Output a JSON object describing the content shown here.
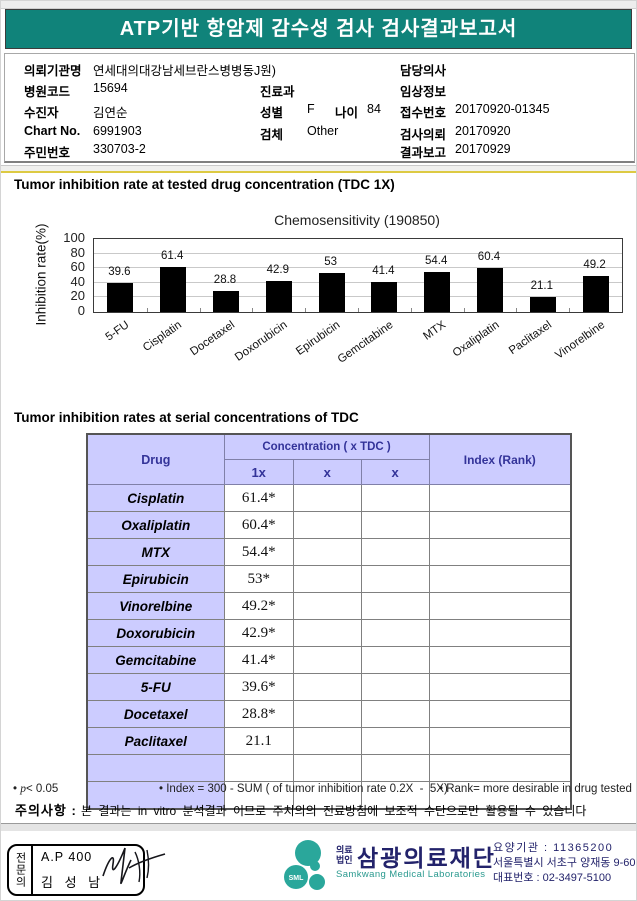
{
  "title": "ATP기반 항암제 감수성 검사 검사결과보고서",
  "colors": {
    "header_teal": "#10837a",
    "table_lavender": "#ccccff",
    "table_navy_text": "#333399",
    "bar_color": "#000000",
    "yellow_rule": "#ddca43",
    "logo_teal": "#2aa79b",
    "logo_navy": "#23236b"
  },
  "patient_info": {
    "requesting_org_label": "의뢰기관명",
    "requesting_org": "연세대의대강남세브란스병병동J원)",
    "hospital_code_label": "병원코드",
    "hospital_code": "15694",
    "patient_label": "수진자",
    "patient_name": "김연순",
    "chart_no_label": "Chart No.",
    "chart_no": "6991903",
    "resident_no_label": "주민번호",
    "resident_no": "330703-2",
    "department_label": "진료과",
    "department": "",
    "sex_label": "성별",
    "sex": "F",
    "age_label": "나이",
    "age": "84",
    "specimen_label": "검체",
    "specimen": "Other",
    "doctor_label": "담당의사",
    "doctor": "",
    "clinical_info_label": "임상정보",
    "clinical_info": "",
    "receipt_no_label": "접수번호",
    "receipt_no": "20170920-01345",
    "test_request_label": "검사의뢰",
    "test_request_date": "20170920",
    "result_report_label": "결과보고",
    "result_report_date": "20170929"
  },
  "sections": {
    "chart_heading": "Tumor inhibition rate at tested drug concentration (TDC 1X)",
    "table_heading": "Tumor inhibition rates at serial concentrations of TDC"
  },
  "chart_data": {
    "type": "bar",
    "title": "Chemosensitivity (190850)",
    "ylabel": "Inhibition rate(%)",
    "xlabel": "",
    "categories": [
      "5-FU",
      "Cisplatin",
      "Docetaxel",
      "Doxorubicin",
      "Epirubicin",
      "Gemcitabine",
      "MTX",
      "Oxaliplatin",
      "Paclitaxel",
      "Vinorelbine"
    ],
    "values": [
      39.6,
      61.4,
      28.8,
      42.9,
      53,
      41.4,
      54.4,
      60.4,
      21.1,
      49.2
    ],
    "ylim": [
      0,
      100
    ],
    "yticks": [
      0,
      20,
      40,
      60,
      80,
      100
    ],
    "grid": true,
    "legend": null,
    "bar_color": "#000000"
  },
  "table": {
    "header": {
      "drug": "Drug",
      "concentration": "Concentration ( x TDC )",
      "sub": [
        "1x",
        "x",
        "x"
      ],
      "index": "Index (Rank)"
    },
    "rows": [
      {
        "drug": "Cisplatin",
        "c1": "61.4*",
        "c2": "",
        "c3": "",
        "index": ""
      },
      {
        "drug": "Oxaliplatin",
        "c1": "60.4*",
        "c2": "",
        "c3": "",
        "index": ""
      },
      {
        "drug": "MTX",
        "c1": "54.4*",
        "c2": "",
        "c3": "",
        "index": ""
      },
      {
        "drug": "Epirubicin",
        "c1": "53*",
        "c2": "",
        "c3": "",
        "index": ""
      },
      {
        "drug": "Vinorelbine",
        "c1": "49.2*",
        "c2": "",
        "c3": "",
        "index": ""
      },
      {
        "drug": "Doxorubicin",
        "c1": "42.9*",
        "c2": "",
        "c3": "",
        "index": ""
      },
      {
        "drug": "Gemcitabine",
        "c1": "41.4*",
        "c2": "",
        "c3": "",
        "index": ""
      },
      {
        "drug": "5-FU",
        "c1": "39.6*",
        "c2": "",
        "c3": "",
        "index": ""
      },
      {
        "drug": "Docetaxel",
        "c1": "28.8*",
        "c2": "",
        "c3": "",
        "index": ""
      },
      {
        "drug": "Paclitaxel",
        "c1": "21.1",
        "c2": "",
        "c3": "",
        "index": ""
      },
      {
        "drug": "",
        "c1": "",
        "c2": "",
        "c3": "",
        "index": ""
      },
      {
        "drug": "",
        "c1": "",
        "c2": "",
        "c3": "",
        "index": ""
      }
    ]
  },
  "footnotes": {
    "bullet": "•",
    "p_symbol": "p",
    "p_rest": "< 0.05",
    "index_note": "Index = 300 - SUM ( of tumor inhibition rate 0.2X  -  5X)",
    "rank_note": "Rank= more desirable in drug tested",
    "caution_label": "주의사항 :",
    "caution_text": "본 결과는 in vitro 분석결과 이므로 주치의의 진료방침에 보조적 수단으로만 활용될 수 있습니다"
  },
  "footer": {
    "stamp": {
      "side_label": "전문의",
      "line1": "A.P 400",
      "line2": "김 성 남"
    },
    "logo": {
      "sml": "SML",
      "org_type_line1": "의료",
      "org_type_line2": "법인",
      "org_name": "삼광의료재단",
      "org_name_en": "Samkwang Medical Laboratories"
    },
    "contact": {
      "line1": "요양기관 : 11365200",
      "line2": "서울특별시 서초구 양재동 9-60",
      "line3": "대표번호 : 02-3497-5100"
    }
  }
}
